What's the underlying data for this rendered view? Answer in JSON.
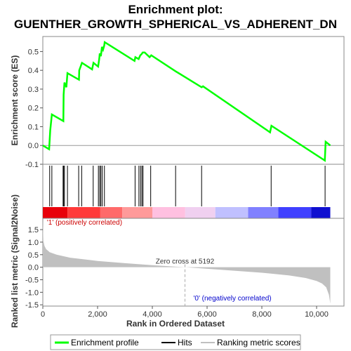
{
  "title_line1": "Enrichment plot:",
  "title_line2": "GUENTHER_GROWTH_SPHERICAL_VS_ADHERENT_DN",
  "chart_data": {
    "type": "line",
    "es_panel": {
      "ylabel": "Enrichment score (ES)",
      "ylim": [
        -0.1,
        0.58
      ],
      "yticks": [
        "-0.1",
        "0.0",
        "0.1",
        "0.2",
        "0.3",
        "0.4",
        "0.5"
      ],
      "ytick_values": [
        -0.1,
        0.0,
        0.1,
        0.2,
        0.3,
        0.4,
        0.5
      ],
      "series": [
        {
          "name": "Enrichment profile",
          "color": "#00ff00",
          "x": [
            0,
            230,
            270,
            330,
            750,
            760,
            790,
            860,
            900,
            1320,
            1330,
            1430,
            1800,
            1850,
            2020,
            2060,
            2080,
            2120,
            2160,
            2200,
            2240,
            2260,
            3350,
            3380,
            3500,
            3560,
            3600,
            3650,
            3720,
            3900,
            3960,
            4850,
            5800,
            5850,
            8300,
            8350,
            10300,
            10330,
            10500
          ],
          "y": [
            0.0,
            -0.02,
            0.08,
            0.165,
            0.13,
            0.27,
            0.335,
            0.31,
            0.385,
            0.35,
            0.4,
            0.44,
            0.405,
            0.44,
            0.42,
            0.46,
            0.49,
            0.475,
            0.525,
            0.51,
            0.53,
            0.55,
            0.45,
            0.47,
            0.46,
            0.48,
            0.485,
            0.495,
            0.495,
            0.47,
            0.48,
            0.395,
            0.31,
            0.315,
            0.07,
            0.105,
            -0.08,
            0.02,
            0.0
          ]
        }
      ]
    },
    "hits_panel": {
      "legend_name": "Hits",
      "positions": [
        250,
        330,
        740,
        760,
        790,
        900,
        1310,
        1420,
        1840,
        2030,
        2080,
        2120,
        2170,
        2250,
        3370,
        3510,
        3570,
        3620,
        3660,
        3940,
        4850,
        5800,
        8340,
        10310
      ]
    },
    "gradient_bar": {
      "colors": [
        "#e8000a",
        "#ff3a3a",
        "#ff6a6a",
        "#ff9a9a",
        "#ffc0e0",
        "#f0d0f0",
        "#c0c0ff",
        "#8080ff",
        "#4040ff",
        "#1010d0"
      ],
      "breaks": [
        0,
        900,
        2100,
        2900,
        4000,
        5200,
        6300,
        7500,
        8600,
        9800,
        10500
      ]
    },
    "metric_panel": {
      "ylabel": "Ranked list metric (Signal2Noise)",
      "xlabel": "Rank in Ordered Dataset",
      "ylim": [
        -1.55,
        1.95
      ],
      "yticks": [
        "-1.5",
        "-1.0",
        "-0.5",
        "0.0",
        "0.5",
        "1.0",
        "1.5"
      ],
      "ytick_values": [
        -1.5,
        -1.0,
        -0.5,
        0.0,
        0.5,
        1.0,
        1.5
      ],
      "x": [
        0,
        20,
        60,
        120,
        250,
        500,
        1000,
        2000,
        3000,
        4000,
        5192,
        6500,
        8000,
        9000,
        9600,
        10000,
        10200,
        10350,
        10450,
        10500
      ],
      "y": [
        1.9,
        1.05,
        0.85,
        0.72,
        0.6,
        0.5,
        0.38,
        0.25,
        0.16,
        0.08,
        0.0,
        -0.1,
        -0.22,
        -0.33,
        -0.43,
        -0.55,
        -0.65,
        -0.8,
        -1.1,
        -1.45
      ],
      "xlim": [
        0,
        11000
      ],
      "xticks": [
        "0",
        "2,000",
        "4,000",
        "6,000",
        "8,000",
        "10,000"
      ],
      "xtick_values": [
        0,
        2000,
        4000,
        6000,
        8000,
        10000
      ],
      "zero_cross": 5192,
      "zero_cross_label": "Zero cross at 5192",
      "pos_label": "'1' (positively correlated)",
      "neg_label": "'0' (negatively correlated)",
      "pos_color": "#cc0000",
      "neg_color": "#0000cc",
      "area_color": "#c0c0c0"
    },
    "legend": {
      "items": [
        {
          "label": "Enrichment profile",
          "color": "#00ff00"
        },
        {
          "label": "Hits",
          "color": "#000000"
        },
        {
          "label": "Ranking metric scores",
          "color": "#c0c0c0"
        }
      ]
    }
  }
}
